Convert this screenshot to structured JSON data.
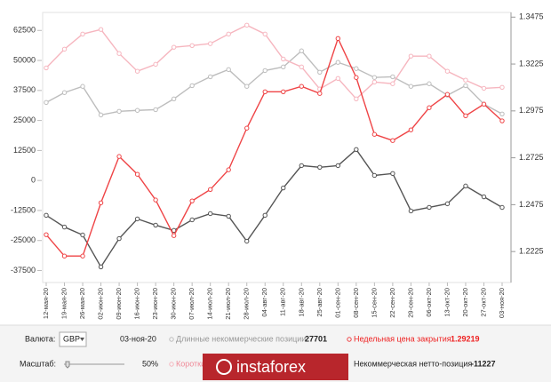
{
  "chart_data": {
    "type": "line",
    "categories": [
      "12-мая-20",
      "19-мая-20",
      "26-мая-20",
      "02-июн-20",
      "09-июн-20",
      "16-июн-20",
      "23-июн-20",
      "30-июн-20",
      "07-июл-20",
      "14-июл-20",
      "21-июл-20",
      "28-июл-20",
      "04-авг-20",
      "11-авг-20",
      "18-авг-20",
      "25-авг-20",
      "01-сен-20",
      "08-сен-20",
      "15-сен-20",
      "22-сен-20",
      "29-сен-20",
      "06-окт-20",
      "13-окт-20",
      "20-окт-20",
      "27-окт-20",
      "03-ноя-20"
    ],
    "series": [
      {
        "name": "Длинные некоммерческие позиции",
        "color": "#bdbdbd",
        "values": [
          32500,
          36600,
          39200,
          27300,
          28800,
          29200,
          29500,
          34000,
          39500,
          43200,
          46200,
          39200,
          45800,
          47300,
          54000,
          45100,
          49200,
          46600,
          42900,
          43200,
          39200,
          40300,
          35500,
          39500,
          31800,
          27701
        ]
      },
      {
        "name": "Короткие некоммерческие позиции",
        "color": "#f6b6bf",
        "values": [
          46900,
          54700,
          61000,
          62900,
          52900,
          45500,
          48400,
          55500,
          56200,
          57000,
          61000,
          64700,
          61000,
          50600,
          47300,
          38100,
          42500,
          34000,
          41000,
          40300,
          51800,
          51800,
          45500,
          41800,
          38400,
          38800
        ]
      },
      {
        "name": "Некоммерческая нетто-позиция",
        "color": "#555555",
        "values": [
          -14500,
          -19400,
          -22700,
          -36000,
          -24200,
          -16000,
          -18600,
          -20800,
          -16400,
          -13800,
          -14900,
          -25300,
          -14500,
          -3100,
          6200,
          5500,
          6200,
          12900,
          2100,
          2900,
          -12700,
          -11200,
          -9700,
          -2300,
          -6800,
          -11227
        ]
      },
      {
        "name": "Недельная цена закрытия",
        "color": "#ef4446",
        "axis": "y2",
        "values": [
          1.2315,
          1.2201,
          1.2201,
          1.2485,
          1.2732,
          1.2637,
          1.25,
          1.231,
          1.2495,
          1.2556,
          1.2661,
          1.2883,
          1.3077,
          1.3077,
          1.3106,
          1.3068,
          1.3361,
          1.3153,
          1.285,
          1.2817,
          1.2874,
          1.2992,
          1.3063,
          1.2949,
          1.3011,
          1.29219
        ]
      }
    ],
    "ylim": [
      -42500,
      70000
    ],
    "yticks": [
      62500,
      50000,
      37500,
      25000,
      12500,
      0,
      -12500,
      -25000,
      -37500
    ],
    "y2lim": [
      1.206,
      1.35
    ],
    "y2ticks": [
      1.3475,
      1.3225,
      1.2975,
      1.2725,
      1.2475,
      1.2225
    ],
    "grid": false
  },
  "controls": {
    "currency_label": "Валюта:",
    "currency": "GBP",
    "scale_label": "Масштаб:",
    "scale": "50%"
  },
  "watermark": "instaforex"
}
